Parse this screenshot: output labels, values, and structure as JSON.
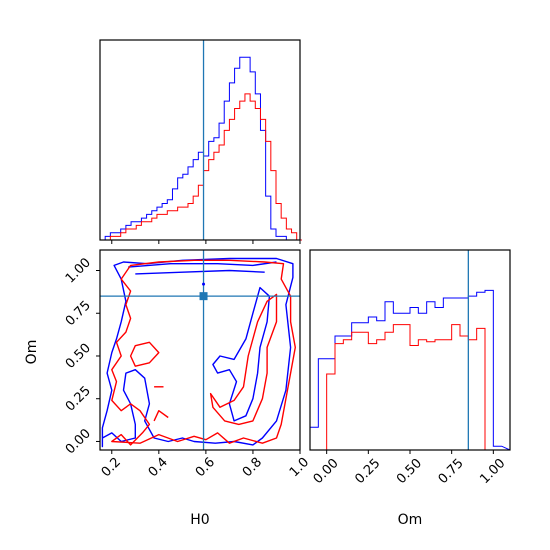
{
  "chart_data": [
    {
      "type": "histogram",
      "panel": "H0 marginal",
      "x_variable": "H0",
      "xlim": [
        0.15,
        1.0
      ],
      "bins": [
        0.15,
        0.172,
        0.194,
        0.216,
        0.238,
        0.26,
        0.282,
        0.304,
        0.326,
        0.348,
        0.37,
        0.392,
        0.414,
        0.436,
        0.458,
        0.48,
        0.502,
        0.524,
        0.546,
        0.568,
        0.59,
        0.612,
        0.634,
        0.656,
        0.678,
        0.7,
        0.722,
        0.744,
        0.766,
        0.788,
        0.81,
        0.832,
        0.854,
        0.876,
        0.898,
        0.92,
        0.942,
        0.964,
        0.986
      ],
      "series": [
        {
          "color": "#0000ff",
          "values": [
            0,
            1,
            2,
            2,
            3,
            4,
            5,
            5,
            6,
            7,
            8,
            9,
            10,
            11,
            14,
            17,
            18,
            20,
            22,
            24,
            23,
            27,
            28,
            32,
            38,
            43,
            47,
            50,
            50,
            46,
            40,
            30,
            12,
            3,
            1,
            1,
            0,
            0,
            0
          ]
        },
        {
          "color": "#ff0000",
          "values": [
            0,
            0,
            1,
            1,
            2,
            3,
            3,
            4,
            5,
            5,
            6,
            7,
            7,
            8,
            8,
            9,
            9,
            10,
            12,
            15,
            19,
            22,
            24,
            26,
            30,
            33,
            36,
            38,
            40,
            38,
            36,
            33,
            27,
            19,
            10,
            6,
            3,
            2,
            0
          ]
        }
      ],
      "truth_line": {
        "x": 0.59,
        "color": "#1f77b4"
      }
    },
    {
      "type": "contour",
      "panel": "H0 vs Om joint",
      "xlabel": "H0",
      "ylabel": "Om",
      "xlim": [
        0.15,
        1.0
      ],
      "ylim": [
        -0.05,
        1.12
      ],
      "xticks": [
        "0.2",
        "0.4",
        "0.6",
        "0.8",
        "1.0"
      ],
      "yticks": [
        "0.00",
        "0.25",
        "0.50",
        "0.75",
        "1.00"
      ],
      "series": [
        {
          "color": "#0000ff",
          "description_levels": 2
        },
        {
          "color": "#ff0000",
          "description_levels": 2
        }
      ],
      "truth_point": {
        "x": 0.59,
        "y": 0.85,
        "color": "#1f77b4"
      }
    },
    {
      "type": "histogram",
      "panel": "Om marginal",
      "xlabel": "Om",
      "xlim": [
        -0.1,
        1.1
      ],
      "xticks": [
        "0.00",
        "0.25",
        "0.50",
        "0.75",
        "1.00"
      ],
      "bins": [
        -0.1,
        -0.05,
        0.0,
        0.05,
        0.1,
        0.15,
        0.2,
        0.25,
        0.3,
        0.35,
        0.4,
        0.45,
        0.5,
        0.55,
        0.6,
        0.65,
        0.7,
        0.75,
        0.8,
        0.85,
        0.9,
        0.95,
        1.0,
        1.05
      ],
      "series": [
        {
          "color": "#0000ff",
          "values": [
            12,
            48,
            48,
            60,
            60,
            67,
            67,
            70,
            68,
            78,
            72,
            72,
            75,
            72,
            78,
            75,
            80,
            80,
            80,
            81,
            83,
            84,
            2
          ]
        },
        {
          "color": "#ff0000",
          "values": [
            0,
            0,
            40,
            56,
            58,
            62,
            62,
            56,
            58,
            62,
            66,
            66,
            55,
            58,
            57,
            58,
            58,
            66,
            60,
            58,
            64,
            0,
            0
          ]
        }
      ],
      "truth_line": {
        "x": 0.85,
        "color": "#1f77b4"
      }
    }
  ]
}
